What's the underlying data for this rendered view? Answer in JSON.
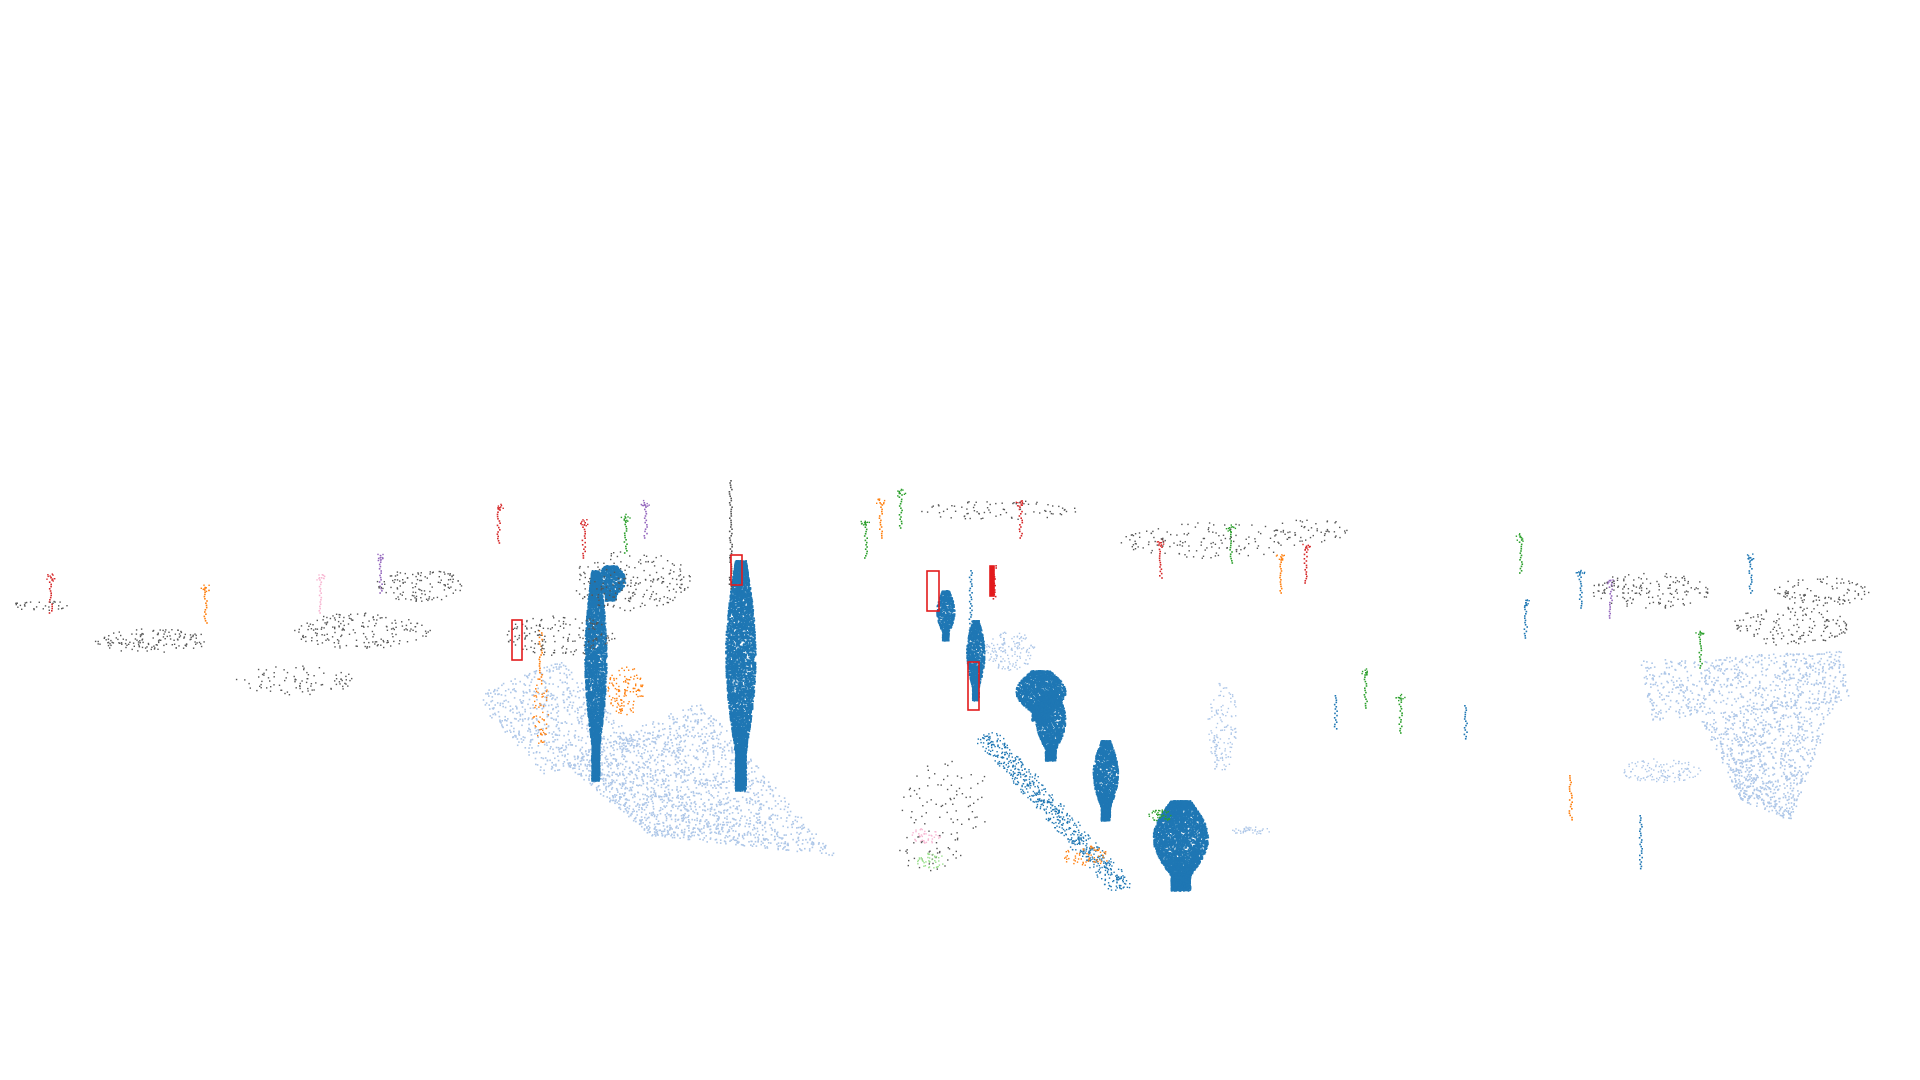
{
  "scene": {
    "background_color": "#ffffff",
    "palette": {
      "tree_dark": "#1f77b4",
      "ground_light": "#aec7e8",
      "orange": "#ff7f0e",
      "green": "#2ca02c",
      "red": "#d62728",
      "purple": "#9467bd",
      "pink": "#f7b6d2",
      "light_green": "#98df8a",
      "gray": "#555555",
      "box_outline": "#e31a1c"
    },
    "annotation_box_count": 5
  }
}
